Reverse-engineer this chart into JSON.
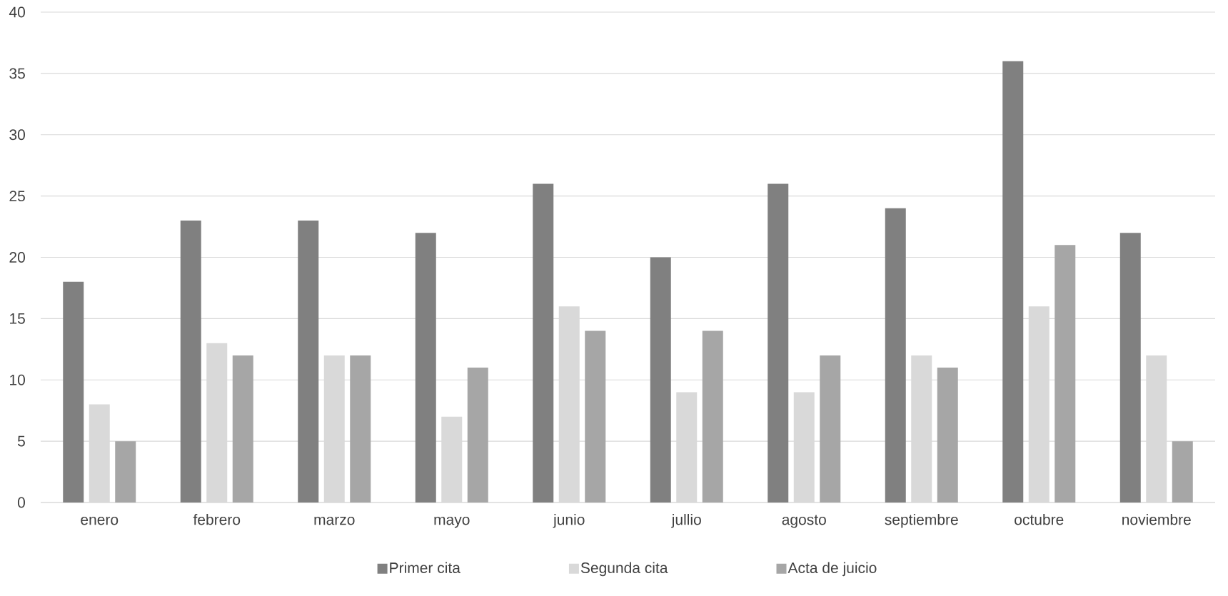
{
  "chart_data": {
    "type": "bar",
    "categories": [
      "enero",
      "febrero",
      "marzo",
      "mayo",
      "junio",
      "jullio",
      "agosto",
      "septiembre",
      "octubre",
      "noviembre"
    ],
    "series": [
      {
        "name": "Primer cita",
        "color": "#808080",
        "values": [
          18,
          23,
          23,
          22,
          26,
          20,
          26,
          24,
          36,
          22
        ]
      },
      {
        "name": "Segunda cita",
        "color": "#d9d9d9",
        "values": [
          8,
          13,
          12,
          7,
          16,
          9,
          9,
          12,
          16,
          12
        ]
      },
      {
        "name": "Acta de juicio",
        "color": "#a6a6a6",
        "values": [
          5,
          12,
          12,
          11,
          14,
          14,
          12,
          11,
          21,
          5
        ]
      }
    ],
    "ylim": [
      0,
      40
    ],
    "yticks": [
      0,
      5,
      10,
      15,
      20,
      25,
      30,
      35,
      40
    ],
    "grid": "y",
    "legend": "bottom"
  }
}
